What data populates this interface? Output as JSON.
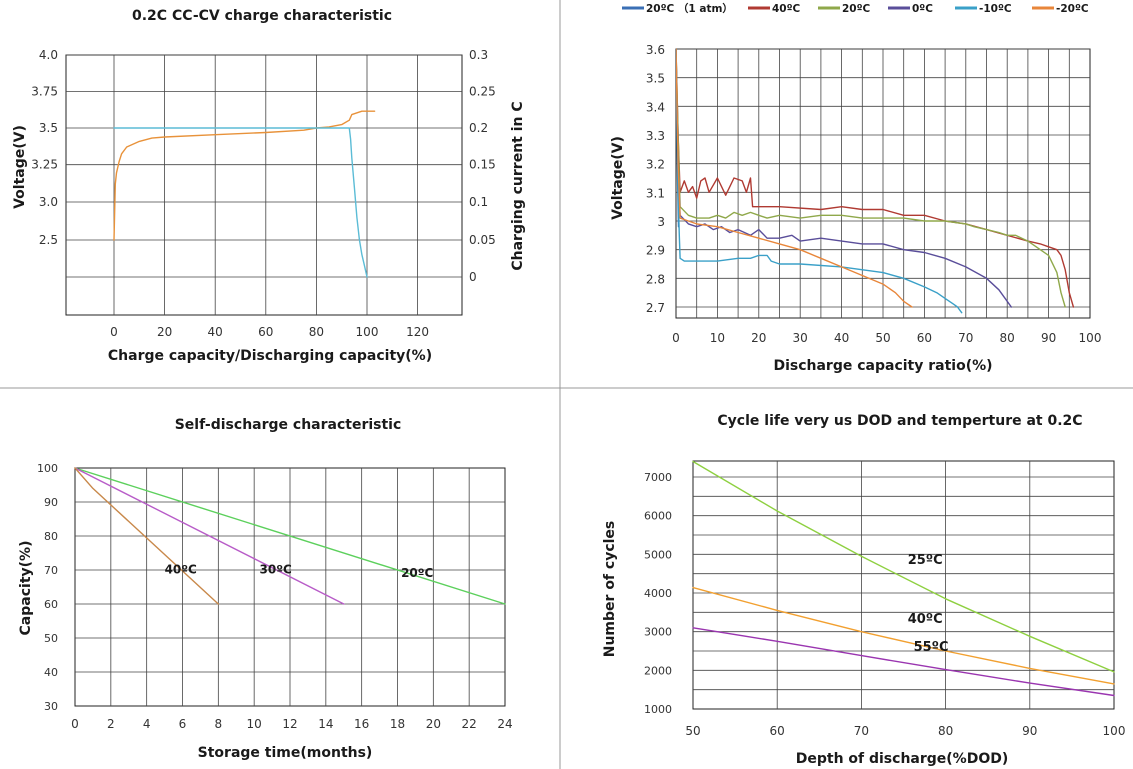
{
  "chart_data": [
    {
      "type": "line",
      "title": "0.2C CC-CV charge characteristic",
      "xlabel": "Charge capacity/Discharging capacity(%)",
      "ylabel": "Voltage(V)",
      "y2label": "Charging current in C",
      "x_ticks": [
        "0",
        "20",
        "40",
        "60",
        "80",
        "100",
        "120"
      ],
      "y_ticks": [
        "4.0",
        "3.75",
        "3.5",
        "3.25",
        "3.0",
        "2.5"
      ],
      "y2_ticks": [
        "0.3",
        "0.25",
        "0.2",
        "0.15",
        "0.1",
        "0.05",
        "0"
      ],
      "xlim": [
        -20,
        140
      ],
      "grid": true,
      "series": [
        {
          "axis": "left",
          "color": "#e8923a",
          "x": [
            0,
            0.5,
            1,
            2,
            3,
            5,
            10,
            15,
            20,
            40,
            60,
            75,
            80,
            85,
            90,
            93,
            94,
            98,
            101,
            103
          ],
          "y": [
            2.5,
            3.0,
            3.1,
            3.2,
            3.27,
            3.33,
            3.38,
            3.41,
            3.42,
            3.44,
            3.46,
            3.48,
            3.5,
            3.51,
            3.53,
            3.57,
            3.62,
            3.65,
            3.65,
            3.65
          ]
        },
        {
          "axis": "right",
          "color": "#5bbcd6",
          "x": [
            0,
            20,
            40,
            60,
            80,
            93,
            93.5,
            94,
            95,
            96,
            97,
            98,
            99,
            100
          ],
          "y": [
            0.2,
            0.2,
            0.2,
            0.2,
            0.2,
            0.2,
            0.185,
            0.16,
            0.12,
            0.08,
            0.05,
            0.03,
            0.015,
            0
          ]
        }
      ]
    },
    {
      "type": "line",
      "title": "",
      "xlabel": "Discharge capacity ratio(%)",
      "ylabel": "Voltage(V)",
      "x_ticks": [
        "0",
        "10",
        "20",
        "30",
        "40",
        "50",
        "60",
        "70",
        "80",
        "90",
        "100"
      ],
      "y_ticks": [
        "3.6",
        "3.5",
        "3.4",
        "3.3",
        "3.2",
        "3.1",
        "3",
        "2.9",
        "2.8",
        "2.7"
      ],
      "xlim": [
        0,
        100
      ],
      "ylim": [
        2.7,
        3.6
      ],
      "grid": true,
      "legend_position": "top",
      "series": [
        {
          "name": "20ºC （1 atm）",
          "color": "#3a6fb5",
          "x": [
            0,
            0.2,
            0.4,
            0.6
          ],
          "y": [
            3.6,
            3.35,
            3.12,
            2.98
          ]
        },
        {
          "name": "40ºC",
          "color": "#b03a32",
          "x": [
            0,
            0.5,
            1,
            2,
            3,
            4,
            5,
            6,
            7,
            8,
            10,
            12,
            14,
            16,
            17,
            18,
            18.5,
            25,
            35,
            40,
            45,
            50,
            55,
            60,
            65,
            70,
            75,
            80,
            85,
            88,
            90,
            92,
            93,
            94,
            95,
            96
          ],
          "y": [
            3.6,
            3.3,
            3.1,
            3.14,
            3.1,
            3.12,
            3.08,
            3.14,
            3.15,
            3.1,
            3.15,
            3.09,
            3.15,
            3.14,
            3.1,
            3.15,
            3.05,
            3.05,
            3.04,
            3.05,
            3.04,
            3.04,
            3.02,
            3.02,
            3.0,
            2.99,
            2.97,
            2.95,
            2.93,
            2.92,
            2.91,
            2.9,
            2.88,
            2.83,
            2.75,
            2.7
          ]
        },
        {
          "name": "20ºC",
          "color": "#8fa84a",
          "x": [
            0,
            0.5,
            1,
            3,
            5,
            8,
            10,
            12,
            14,
            16,
            18,
            20,
            22,
            25,
            30,
            35,
            40,
            45,
            50,
            55,
            60,
            65,
            70,
            72,
            75,
            78,
            80,
            82,
            85,
            88,
            90,
            92,
            93,
            94
          ],
          "y": [
            3.6,
            3.3,
            3.05,
            3.02,
            3.01,
            3.01,
            3.02,
            3.01,
            3.03,
            3.02,
            3.03,
            3.02,
            3.01,
            3.02,
            3.01,
            3.02,
            3.02,
            3.01,
            3.01,
            3.01,
            3.0,
            3.0,
            2.99,
            2.98,
            2.97,
            2.96,
            2.95,
            2.95,
            2.93,
            2.9,
            2.88,
            2.82,
            2.75,
            2.7
          ]
        },
        {
          "name": "0ºC",
          "color": "#5a4e9a",
          "x": [
            0,
            0.5,
            1,
            3,
            5,
            7,
            9,
            11,
            13,
            15,
            18,
            20,
            22,
            25,
            28,
            30,
            35,
            40,
            45,
            50,
            55,
            60,
            65,
            70,
            75,
            78,
            80,
            81
          ],
          "y": [
            3.6,
            3.2,
            3.02,
            2.99,
            2.98,
            2.99,
            2.97,
            2.98,
            2.96,
            2.97,
            2.95,
            2.97,
            2.94,
            2.94,
            2.95,
            2.93,
            2.94,
            2.93,
            2.92,
            2.92,
            2.9,
            2.89,
            2.87,
            2.84,
            2.8,
            2.76,
            2.72,
            2.7
          ]
        },
        {
          "name": "-10ºC",
          "color": "#3aa0c8",
          "x": [
            0,
            0.5,
            0.8,
            1,
            2,
            5,
            10,
            15,
            18,
            20,
            22,
            23,
            25,
            30,
            40,
            50,
            55,
            60,
            63,
            65,
            67,
            68,
            69
          ],
          "y": [
            3.6,
            3.1,
            2.95,
            2.87,
            2.86,
            2.86,
            2.86,
            2.87,
            2.87,
            2.88,
            2.88,
            2.86,
            2.85,
            2.85,
            2.84,
            2.82,
            2.8,
            2.77,
            2.75,
            2.73,
            2.71,
            2.7,
            2.68
          ]
        },
        {
          "name": "-20ºC",
          "color": "#e8863a",
          "x": [
            0,
            0.5,
            1,
            3,
            5,
            10,
            15,
            20,
            25,
            30,
            35,
            40,
            45,
            50,
            53,
            55,
            57
          ],
          "y": [
            3.6,
            3.2,
            3.01,
            3.0,
            2.99,
            2.98,
            2.96,
            2.94,
            2.92,
            2.9,
            2.87,
            2.84,
            2.81,
            2.78,
            2.75,
            2.72,
            2.7
          ]
        }
      ]
    },
    {
      "type": "line",
      "title": "Self-discharge characteristic",
      "xlabel": "Storage time(months)",
      "ylabel": "Capacity(%)",
      "x_ticks": [
        "0",
        "2",
        "4",
        "6",
        "8",
        "10",
        "12",
        "14",
        "16",
        "18",
        "20",
        "22",
        "24"
      ],
      "y_ticks": [
        "100",
        "90",
        "80",
        "70",
        "60",
        "50",
        "40",
        "30"
      ],
      "xlim": [
        0,
        24
      ],
      "ylim": [
        30,
        100
      ],
      "grid": true,
      "series": [
        {
          "color": "#5cd05c",
          "x": [
            0,
            24
          ],
          "y": [
            100,
            60
          ]
        },
        {
          "color": "#b85cc8",
          "x": [
            0,
            15
          ],
          "y": [
            100,
            60
          ]
        },
        {
          "color": "#c8884a",
          "x": [
            0,
            1,
            8
          ],
          "y": [
            100,
            94,
            60
          ]
        }
      ],
      "annotations": [
        {
          "text": "40ºC",
          "x": 5.0,
          "y": 69
        },
        {
          "text": "30ºC",
          "x": 10.3,
          "y": 69
        },
        {
          "text": "20ºC",
          "x": 18.2,
          "y": 68
        }
      ]
    },
    {
      "type": "line",
      "title": "Cycle life very us DOD and temperture at 0.2C",
      "xlabel": "Depth of discharge(%DOD)",
      "ylabel": "Number of cycles",
      "x_ticks": [
        "50",
        "60",
        "70",
        "80",
        "90",
        "100"
      ],
      "y_ticks": [
        "7000",
        "6000",
        "5000",
        "4000",
        "3000",
        "2000",
        "1000"
      ],
      "xlim": [
        50,
        100
      ],
      "ylim": [
        1000,
        7400
      ],
      "grid": true,
      "series": [
        {
          "color": "#8ed040",
          "x": [
            50,
            60,
            70,
            80,
            90,
            100
          ],
          "y": [
            7400,
            6120,
            4950,
            3850,
            2880,
            1960
          ]
        },
        {
          "color": "#f2a030",
          "x": [
            50,
            60,
            70,
            80,
            90,
            100
          ],
          "y": [
            4140,
            3550,
            3000,
            2500,
            2050,
            1650
          ]
        },
        {
          "color": "#9a35b0",
          "x": [
            50,
            60,
            70,
            80,
            90,
            100
          ],
          "y": [
            3100,
            2750,
            2380,
            2020,
            1670,
            1350
          ]
        }
      ],
      "annotations": [
        {
          "text": "25ºC",
          "x": 75.5,
          "y": 4750
        },
        {
          "text": "40ºC",
          "x": 75.5,
          "y": 3220
        },
        {
          "text": "55ºC",
          "x": 76.2,
          "y": 2500
        }
      ]
    }
  ]
}
